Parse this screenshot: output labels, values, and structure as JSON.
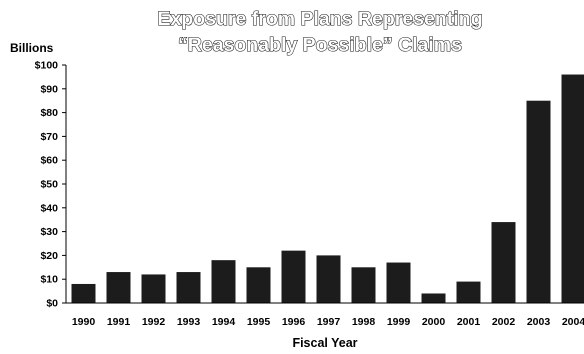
{
  "chart_data": {
    "type": "bar",
    "title": [
      "Exposure from Plans Representing",
      "“Reasonably Possible” Claims"
    ],
    "ylabel": "Billions",
    "xlabel": "Fiscal Year",
    "categories": [
      "1990",
      "1991",
      "1992",
      "1993",
      "1994",
      "1995",
      "1996",
      "1997",
      "1998",
      "1999",
      "2000",
      "2001",
      "2002",
      "2003",
      "2004"
    ],
    "values": [
      8,
      13,
      12,
      13,
      18,
      15,
      22,
      20,
      15,
      17,
      4,
      9,
      34,
      85,
      96
    ],
    "ylim": [
      0,
      100
    ],
    "yticks": [
      "$0",
      "$10",
      "$20",
      "$30",
      "$40",
      "$50",
      "$60",
      "$70",
      "$80",
      "$90",
      "$100"
    ],
    "grid": false,
    "legend": "none",
    "colors": {
      "bar": "#1c1c1c",
      "axis": "#000000"
    }
  }
}
